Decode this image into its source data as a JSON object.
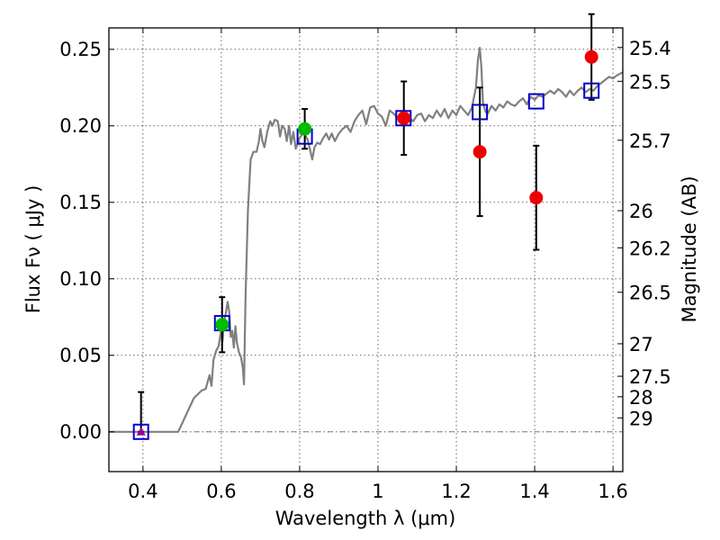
{
  "chart_data": {
    "type": "scatter",
    "title": "",
    "xlabel": "Wavelength  λ (μm)",
    "ylabel": "Flux  Fν  ( μJy )",
    "y2label": "Magnitude (AB)",
    "xlim": [
      0.313,
      1.625
    ],
    "ylim": [
      -0.026,
      0.264
    ],
    "grid": true,
    "x_ticks": [
      {
        "value": 0.4,
        "label": "0.4"
      },
      {
        "value": 0.6,
        "label": "0.6"
      },
      {
        "value": 0.8,
        "label": "0.8"
      },
      {
        "value": 1.0,
        "label": "1"
      },
      {
        "value": 1.2,
        "label": "1.2"
      },
      {
        "value": 1.4,
        "label": "1.4"
      },
      {
        "value": 1.6,
        "label": "1.6"
      }
    ],
    "y_ticks": [
      {
        "value": 0.0,
        "label": "0.00"
      },
      {
        "value": 0.05,
        "label": "0.05"
      },
      {
        "value": 0.1,
        "label": "0.10"
      },
      {
        "value": 0.15,
        "label": "0.15"
      },
      {
        "value": 0.2,
        "label": "0.20"
      },
      {
        "value": 0.25,
        "label": "0.25"
      }
    ],
    "mag_ticks": [
      {
        "value": 25.4,
        "label": "25.4"
      },
      {
        "value": 25.5,
        "label": "25.5"
      },
      {
        "value": 25.7,
        "label": "25.7"
      },
      {
        "value": 26,
        "label": "26"
      },
      {
        "value": 26.2,
        "label": "26.2"
      },
      {
        "value": 26.5,
        "label": "26.5"
      },
      {
        "value": 27,
        "label": "27"
      },
      {
        "value": 27.5,
        "label": "27.5"
      },
      {
        "value": 28,
        "label": "28"
      },
      {
        "value": 29,
        "label": "29"
      }
    ],
    "colors": {
      "template": "#808080",
      "model": "#0000cc",
      "red": "#ee0000",
      "green": "#00bb00",
      "purple": "#990099",
      "errorbar": "#000000",
      "zero": "#808080",
      "grid": "#666666"
    },
    "series": [
      {
        "name": "template-spectrum",
        "type": "line",
        "points": [
          [
            0.313,
            0.0
          ],
          [
            0.49,
            0.0
          ],
          [
            0.51,
            0.011
          ],
          [
            0.53,
            0.022
          ],
          [
            0.55,
            0.027
          ],
          [
            0.56,
            0.028
          ],
          [
            0.57,
            0.037
          ],
          [
            0.575,
            0.03
          ],
          [
            0.58,
            0.047
          ],
          [
            0.587,
            0.053
          ],
          [
            0.593,
            0.056
          ],
          [
            0.6,
            0.067
          ],
          [
            0.603,
            0.059
          ],
          [
            0.607,
            0.072
          ],
          [
            0.612,
            0.078
          ],
          [
            0.616,
            0.085
          ],
          [
            0.62,
            0.079
          ],
          [
            0.624,
            0.062
          ],
          [
            0.628,
            0.066
          ],
          [
            0.632,
            0.055
          ],
          [
            0.636,
            0.069
          ],
          [
            0.64,
            0.058
          ],
          [
            0.645,
            0.052
          ],
          [
            0.65,
            0.049
          ],
          [
            0.655,
            0.042
          ],
          [
            0.658,
            0.031
          ],
          [
            0.662,
            0.09
          ],
          [
            0.668,
            0.145
          ],
          [
            0.675,
            0.178
          ],
          [
            0.682,
            0.183
          ],
          [
            0.69,
            0.183
          ],
          [
            0.696,
            0.19
          ],
          [
            0.7,
            0.198
          ],
          [
            0.705,
            0.19
          ],
          [
            0.71,
            0.186
          ],
          [
            0.718,
            0.197
          ],
          [
            0.725,
            0.203
          ],
          [
            0.73,
            0.2
          ],
          [
            0.737,
            0.204
          ],
          [
            0.744,
            0.203
          ],
          [
            0.75,
            0.193
          ],
          [
            0.755,
            0.2
          ],
          [
            0.762,
            0.198
          ],
          [
            0.767,
            0.19
          ],
          [
            0.773,
            0.2
          ],
          [
            0.778,
            0.188
          ],
          [
            0.784,
            0.196
          ],
          [
            0.79,
            0.185
          ],
          [
            0.8,
            0.192
          ],
          [
            0.81,
            0.196
          ],
          [
            0.82,
            0.191
          ],
          [
            0.826,
            0.185
          ],
          [
            0.832,
            0.178
          ],
          [
            0.838,
            0.186
          ],
          [
            0.845,
            0.189
          ],
          [
            0.852,
            0.188
          ],
          [
            0.86,
            0.192
          ],
          [
            0.868,
            0.195
          ],
          [
            0.875,
            0.191
          ],
          [
            0.882,
            0.195
          ],
          [
            0.89,
            0.19
          ],
          [
            0.9,
            0.195
          ],
          [
            0.91,
            0.198
          ],
          [
            0.92,
            0.2
          ],
          [
            0.93,
            0.196
          ],
          [
            0.94,
            0.203
          ],
          [
            0.95,
            0.207
          ],
          [
            0.96,
            0.21
          ],
          [
            0.97,
            0.201
          ],
          [
            0.98,
            0.212
          ],
          [
            0.99,
            0.213
          ],
          [
            1.0,
            0.208
          ],
          [
            1.01,
            0.206
          ],
          [
            1.02,
            0.2
          ],
          [
            1.03,
            0.21
          ],
          [
            1.04,
            0.208
          ],
          [
            1.05,
            0.205
          ],
          [
            1.06,
            0.209
          ],
          [
            1.07,
            0.207
          ],
          [
            1.08,
            0.205
          ],
          [
            1.09,
            0.203
          ],
          [
            1.1,
            0.207
          ],
          [
            1.11,
            0.208
          ],
          [
            1.12,
            0.203
          ],
          [
            1.13,
            0.207
          ],
          [
            1.14,
            0.205
          ],
          [
            1.15,
            0.21
          ],
          [
            1.16,
            0.206
          ],
          [
            1.17,
            0.211
          ],
          [
            1.18,
            0.205
          ],
          [
            1.19,
            0.21
          ],
          [
            1.2,
            0.207
          ],
          [
            1.21,
            0.213
          ],
          [
            1.22,
            0.21
          ],
          [
            1.23,
            0.207
          ],
          [
            1.24,
            0.212
          ],
          [
            1.25,
            0.225
          ],
          [
            1.255,
            0.243
          ],
          [
            1.26,
            0.251
          ],
          [
            1.264,
            0.238
          ],
          [
            1.268,
            0.215
          ],
          [
            1.275,
            0.209
          ],
          [
            1.28,
            0.208
          ],
          [
            1.29,
            0.213
          ],
          [
            1.3,
            0.21
          ],
          [
            1.31,
            0.214
          ],
          [
            1.32,
            0.212
          ],
          [
            1.33,
            0.216
          ],
          [
            1.34,
            0.214
          ],
          [
            1.35,
            0.213
          ],
          [
            1.36,
            0.216
          ],
          [
            1.37,
            0.218
          ],
          [
            1.38,
            0.214
          ],
          [
            1.39,
            0.219
          ],
          [
            1.4,
            0.217
          ],
          [
            1.41,
            0.22
          ],
          [
            1.42,
            0.219
          ],
          [
            1.43,
            0.221
          ],
          [
            1.44,
            0.223
          ],
          [
            1.45,
            0.221
          ],
          [
            1.46,
            0.224
          ],
          [
            1.47,
            0.222
          ],
          [
            1.48,
            0.219
          ],
          [
            1.49,
            0.223
          ],
          [
            1.5,
            0.22
          ],
          [
            1.51,
            0.223
          ],
          [
            1.52,
            0.225
          ],
          [
            1.53,
            0.222
          ],
          [
            1.54,
            0.224
          ],
          [
            1.55,
            0.223
          ],
          [
            1.56,
            0.226
          ],
          [
            1.57,
            0.228
          ],
          [
            1.58,
            0.23
          ],
          [
            1.59,
            0.232
          ],
          [
            1.6,
            0.231
          ],
          [
            1.61,
            0.233
          ],
          [
            1.625,
            0.235
          ]
        ]
      },
      {
        "name": "model-fluxes",
        "marker": "open-square",
        "color": "blue",
        "points": [
          [
            0.395,
            0.0
          ],
          [
            0.602,
            0.071
          ],
          [
            0.813,
            0.193
          ],
          [
            1.065,
            0.205
          ],
          [
            1.26,
            0.209
          ],
          [
            1.404,
            0.216
          ],
          [
            1.545,
            0.223
          ]
        ]
      },
      {
        "name": "observed-red",
        "marker": "circle",
        "color": "red",
        "points": [
          {
            "x": 1.066,
            "y": 0.205,
            "err": 0.024
          },
          {
            "x": 1.26,
            "y": 0.183,
            "err": 0.042
          },
          {
            "x": 1.404,
            "y": 0.153,
            "err": 0.034
          },
          {
            "x": 1.545,
            "y": 0.245,
            "err": 0.028
          }
        ]
      },
      {
        "name": "observed-green",
        "marker": "circle",
        "color": "green",
        "points": [
          {
            "x": 0.602,
            "y": 0.07,
            "err": 0.018
          },
          {
            "x": 0.813,
            "y": 0.198,
            "err": 0.013
          }
        ]
      },
      {
        "name": "upper-limit",
        "marker": "triangle",
        "color": "purple",
        "points": [
          {
            "x": 0.395,
            "y": 0.0,
            "err_up": 0.026
          }
        ]
      }
    ]
  }
}
